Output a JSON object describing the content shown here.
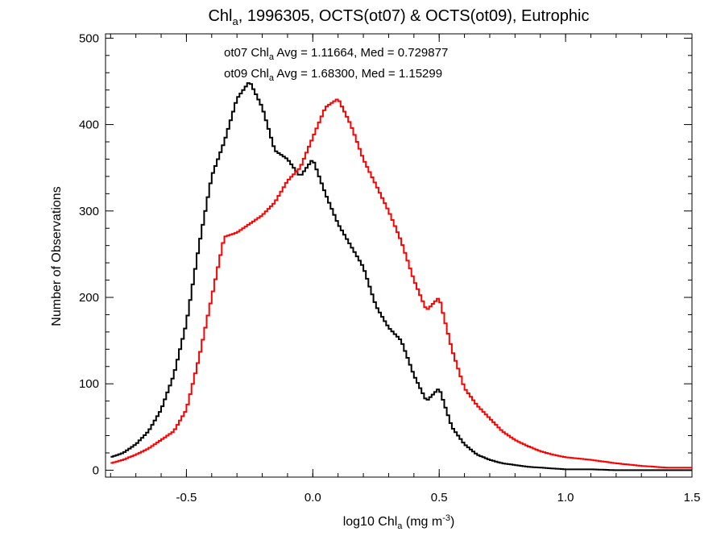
{
  "chart_data": {
    "type": "line",
    "title": {
      "prefix": "Chl",
      "sub": "a",
      "rest": ", 1996305, OCTS(ot07) & OCTS(ot09), Eutrophic"
    },
    "xlabel": {
      "prefix": "log10 Chl",
      "sub": "a",
      "mid": " (mg m",
      "sup": "-3",
      "suffix": ")"
    },
    "ylabel": "Number of Observations",
    "xlim": [
      -0.82,
      1.5
    ],
    "ylim": [
      -8,
      505
    ],
    "xticks": [
      -0.5,
      0.0,
      0.5,
      1.0,
      1.5
    ],
    "xtick_labels": [
      "-0.5",
      "0.0",
      "0.5",
      "1.0",
      "1.5"
    ],
    "yticks": [
      0,
      100,
      200,
      300,
      400,
      500
    ],
    "ytick_labels": [
      "0",
      "100",
      "200",
      "300",
      "400",
      "500"
    ],
    "style": "histogram-step",
    "annotations": [
      {
        "series": "ot07",
        "prefix": "ot07 Chl",
        "sub": "a",
        "rest": " Avg = 1.11664, Med = 0.729877",
        "color": "#000000"
      },
      {
        "series": "ot09",
        "prefix": "ot09 Chl",
        "sub": "a",
        "rest": " Avg = 1.68300, Med = 1.15299",
        "color": "#ff0000"
      }
    ],
    "series": [
      {
        "id": "ot07",
        "color": "#000000",
        "x": [
          -0.8,
          -0.75,
          -0.7,
          -0.65,
          -0.6,
          -0.55,
          -0.5,
          -0.45,
          -0.4,
          -0.35,
          -0.3,
          -0.25,
          -0.2,
          -0.15,
          -0.1,
          -0.05,
          0.0,
          0.05,
          0.1,
          0.15,
          0.2,
          0.25,
          0.3,
          0.35,
          0.4,
          0.45,
          0.5,
          0.55,
          0.6,
          0.65,
          0.7,
          0.75,
          0.8,
          0.85,
          0.9,
          0.95,
          1.0,
          1.1,
          1.2,
          1.3,
          1.4,
          1.5
        ],
        "y": [
          15,
          20,
          30,
          45,
          70,
          110,
          170,
          260,
          340,
          380,
          430,
          450,
          420,
          370,
          360,
          340,
          360,
          320,
          285,
          260,
          235,
          190,
          165,
          150,
          110,
          80,
          95,
          50,
          30,
          18,
          12,
          8,
          6,
          4,
          3,
          2,
          1,
          1,
          0,
          0,
          0,
          0
        ]
      },
      {
        "id": "ot09",
        "color": "#ff0000",
        "x": [
          -0.8,
          -0.75,
          -0.7,
          -0.65,
          -0.6,
          -0.55,
          -0.5,
          -0.45,
          -0.4,
          -0.35,
          -0.3,
          -0.25,
          -0.2,
          -0.15,
          -0.1,
          -0.05,
          0.0,
          0.05,
          0.1,
          0.15,
          0.2,
          0.25,
          0.3,
          0.35,
          0.4,
          0.45,
          0.5,
          0.55,
          0.6,
          0.65,
          0.7,
          0.75,
          0.8,
          0.85,
          0.9,
          0.95,
          1.0,
          1.1,
          1.2,
          1.3,
          1.4,
          1.5
        ],
        "y": [
          8,
          12,
          18,
          25,
          35,
          45,
          70,
          130,
          200,
          270,
          275,
          285,
          295,
          310,
          335,
          350,
          385,
          420,
          430,
          400,
          360,
          330,
          300,
          265,
          220,
          185,
          200,
          140,
          95,
          75,
          60,
          45,
          35,
          28,
          22,
          18,
          15,
          12,
          8,
          5,
          3,
          3
        ]
      }
    ]
  }
}
